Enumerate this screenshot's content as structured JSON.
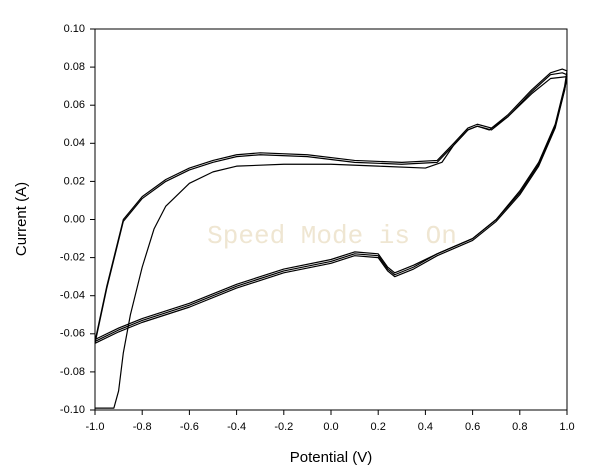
{
  "chart_data": {
    "type": "line",
    "xlabel": "Potential (V)",
    "ylabel": "Current (A)",
    "watermark": "Speed Mode is On",
    "xlim": [
      -1.0,
      1.0
    ],
    "xticks": [
      {
        "value": -1.0,
        "label": "-1.0"
      },
      {
        "value": -0.8,
        "label": "-0.8"
      },
      {
        "value": -0.6,
        "label": "-0.6"
      },
      {
        "value": -0.4,
        "label": "-0.4"
      },
      {
        "value": -0.2,
        "label": "-0.2"
      },
      {
        "value": 0,
        "label": "0.0"
      },
      {
        "value": 0.2,
        "label": "0.2"
      },
      {
        "value": 0.4,
        "label": "0.4"
      },
      {
        "value": 0.6,
        "label": "0.6"
      },
      {
        "value": 0.8,
        "label": "0.8"
      },
      {
        "value": 1.0,
        "label": "1.0"
      }
    ],
    "ylim": [
      -0.1,
      0.1
    ],
    "yticks": [
      {
        "value": -0.1,
        "label": "-0.10"
      },
      {
        "value": -0.08,
        "label": "-0.08"
      },
      {
        "value": -0.06,
        "label": "-0.06"
      },
      {
        "value": -0.04,
        "label": "-0.04"
      },
      {
        "value": -0.02,
        "label": "-0.02"
      },
      {
        "value": 0,
        "label": "0.00"
      },
      {
        "value": 0.02,
        "label": "0.02"
      },
      {
        "value": 0.04,
        "label": "0.04"
      },
      {
        "value": 0.06,
        "label": "0.06"
      },
      {
        "value": 0.08,
        "label": "0.08"
      },
      {
        "value": 0.1,
        "label": "0.10"
      }
    ],
    "series": [
      {
        "color": "#000000",
        "x": [
          -1.0,
          -0.92,
          -0.9,
          -0.88,
          -0.85,
          -0.8,
          -0.75,
          -0.7,
          -0.6,
          -0.5,
          -0.4,
          -0.2,
          0,
          0.2,
          0.4,
          0.47,
          0.52,
          0.58,
          0.62,
          0.67,
          0.75,
          0.85,
          0.93,
          1.0,
          0.99,
          0.95,
          0.88,
          0.8,
          0.7,
          0.6,
          0.45,
          0.35,
          0.27,
          0.24,
          0.2,
          0.1,
          0,
          -0.2,
          -0.4,
          -0.6,
          -0.8,
          -0.9,
          -1.0
        ],
        "values": [
          -0.099,
          -0.099,
          -0.09,
          -0.07,
          -0.05,
          -0.025,
          -0.005,
          0.007,
          0.019,
          0.025,
          0.028,
          0.029,
          0.029,
          0.028,
          0.027,
          0.03,
          0.039,
          0.047,
          0.049,
          0.047,
          0.054,
          0.066,
          0.074,
          0.075,
          0.068,
          0.049,
          0.029,
          0.014,
          0.0,
          -0.01,
          -0.018,
          -0.024,
          -0.028,
          -0.025,
          -0.018,
          -0.017,
          -0.021,
          -0.026,
          -0.034,
          -0.044,
          -0.052,
          -0.057,
          -0.063
        ]
      },
      {
        "color": "#000000",
        "x": [
          -1.0,
          -0.95,
          -0.88,
          -0.8,
          -0.7,
          -0.6,
          -0.5,
          -0.4,
          -0.3,
          -0.1,
          0.1,
          0.3,
          0.45,
          0.52,
          0.58,
          0.62,
          0.68,
          0.75,
          0.85,
          0.93,
          0.98,
          1.0,
          0.99,
          0.95,
          0.88,
          0.8,
          0.7,
          0.6,
          0.45,
          0.35,
          0.27,
          0.24,
          0.2,
          0.1,
          0,
          -0.2,
          -0.4,
          -0.6,
          -0.8,
          -0.9,
          -1.0
        ],
        "values": [
          -0.064,
          -0.035,
          0.0,
          0.012,
          0.021,
          0.027,
          0.031,
          0.034,
          0.035,
          0.034,
          0.031,
          0.03,
          0.031,
          0.04,
          0.048,
          0.05,
          0.048,
          0.055,
          0.068,
          0.077,
          0.079,
          0.078,
          0.07,
          0.05,
          0.03,
          0.015,
          0.0,
          -0.01,
          -0.018,
          -0.025,
          -0.029,
          -0.026,
          -0.019,
          -0.018,
          -0.022,
          -0.027,
          -0.035,
          -0.045,
          -0.053,
          -0.058,
          -0.064
        ]
      },
      {
        "color": "#000000",
        "x": [
          -1.0,
          -0.95,
          -0.88,
          -0.8,
          -0.7,
          -0.6,
          -0.5,
          -0.4,
          -0.3,
          -0.1,
          0.1,
          0.3,
          0.45,
          0.52,
          0.58,
          0.62,
          0.68,
          0.75,
          0.85,
          0.93,
          0.98,
          1.0,
          0.99,
          0.95,
          0.88,
          0.8,
          0.7,
          0.6,
          0.45,
          0.35,
          0.27,
          0.24,
          0.2,
          0.1,
          0,
          -0.2,
          -0.4,
          -0.6,
          -0.8,
          -0.9,
          -1.0
        ],
        "values": [
          -0.065,
          -0.036,
          -0.001,
          0.011,
          0.02,
          0.026,
          0.03,
          0.033,
          0.034,
          0.033,
          0.03,
          0.029,
          0.03,
          0.039,
          0.047,
          0.049,
          0.047,
          0.054,
          0.067,
          0.076,
          0.077,
          0.076,
          0.068,
          0.048,
          0.028,
          0.013,
          -0.001,
          -0.011,
          -0.019,
          -0.026,
          -0.03,
          -0.027,
          -0.02,
          -0.019,
          -0.023,
          -0.028,
          -0.036,
          -0.046,
          -0.054,
          -0.059,
          -0.065
        ]
      }
    ]
  }
}
